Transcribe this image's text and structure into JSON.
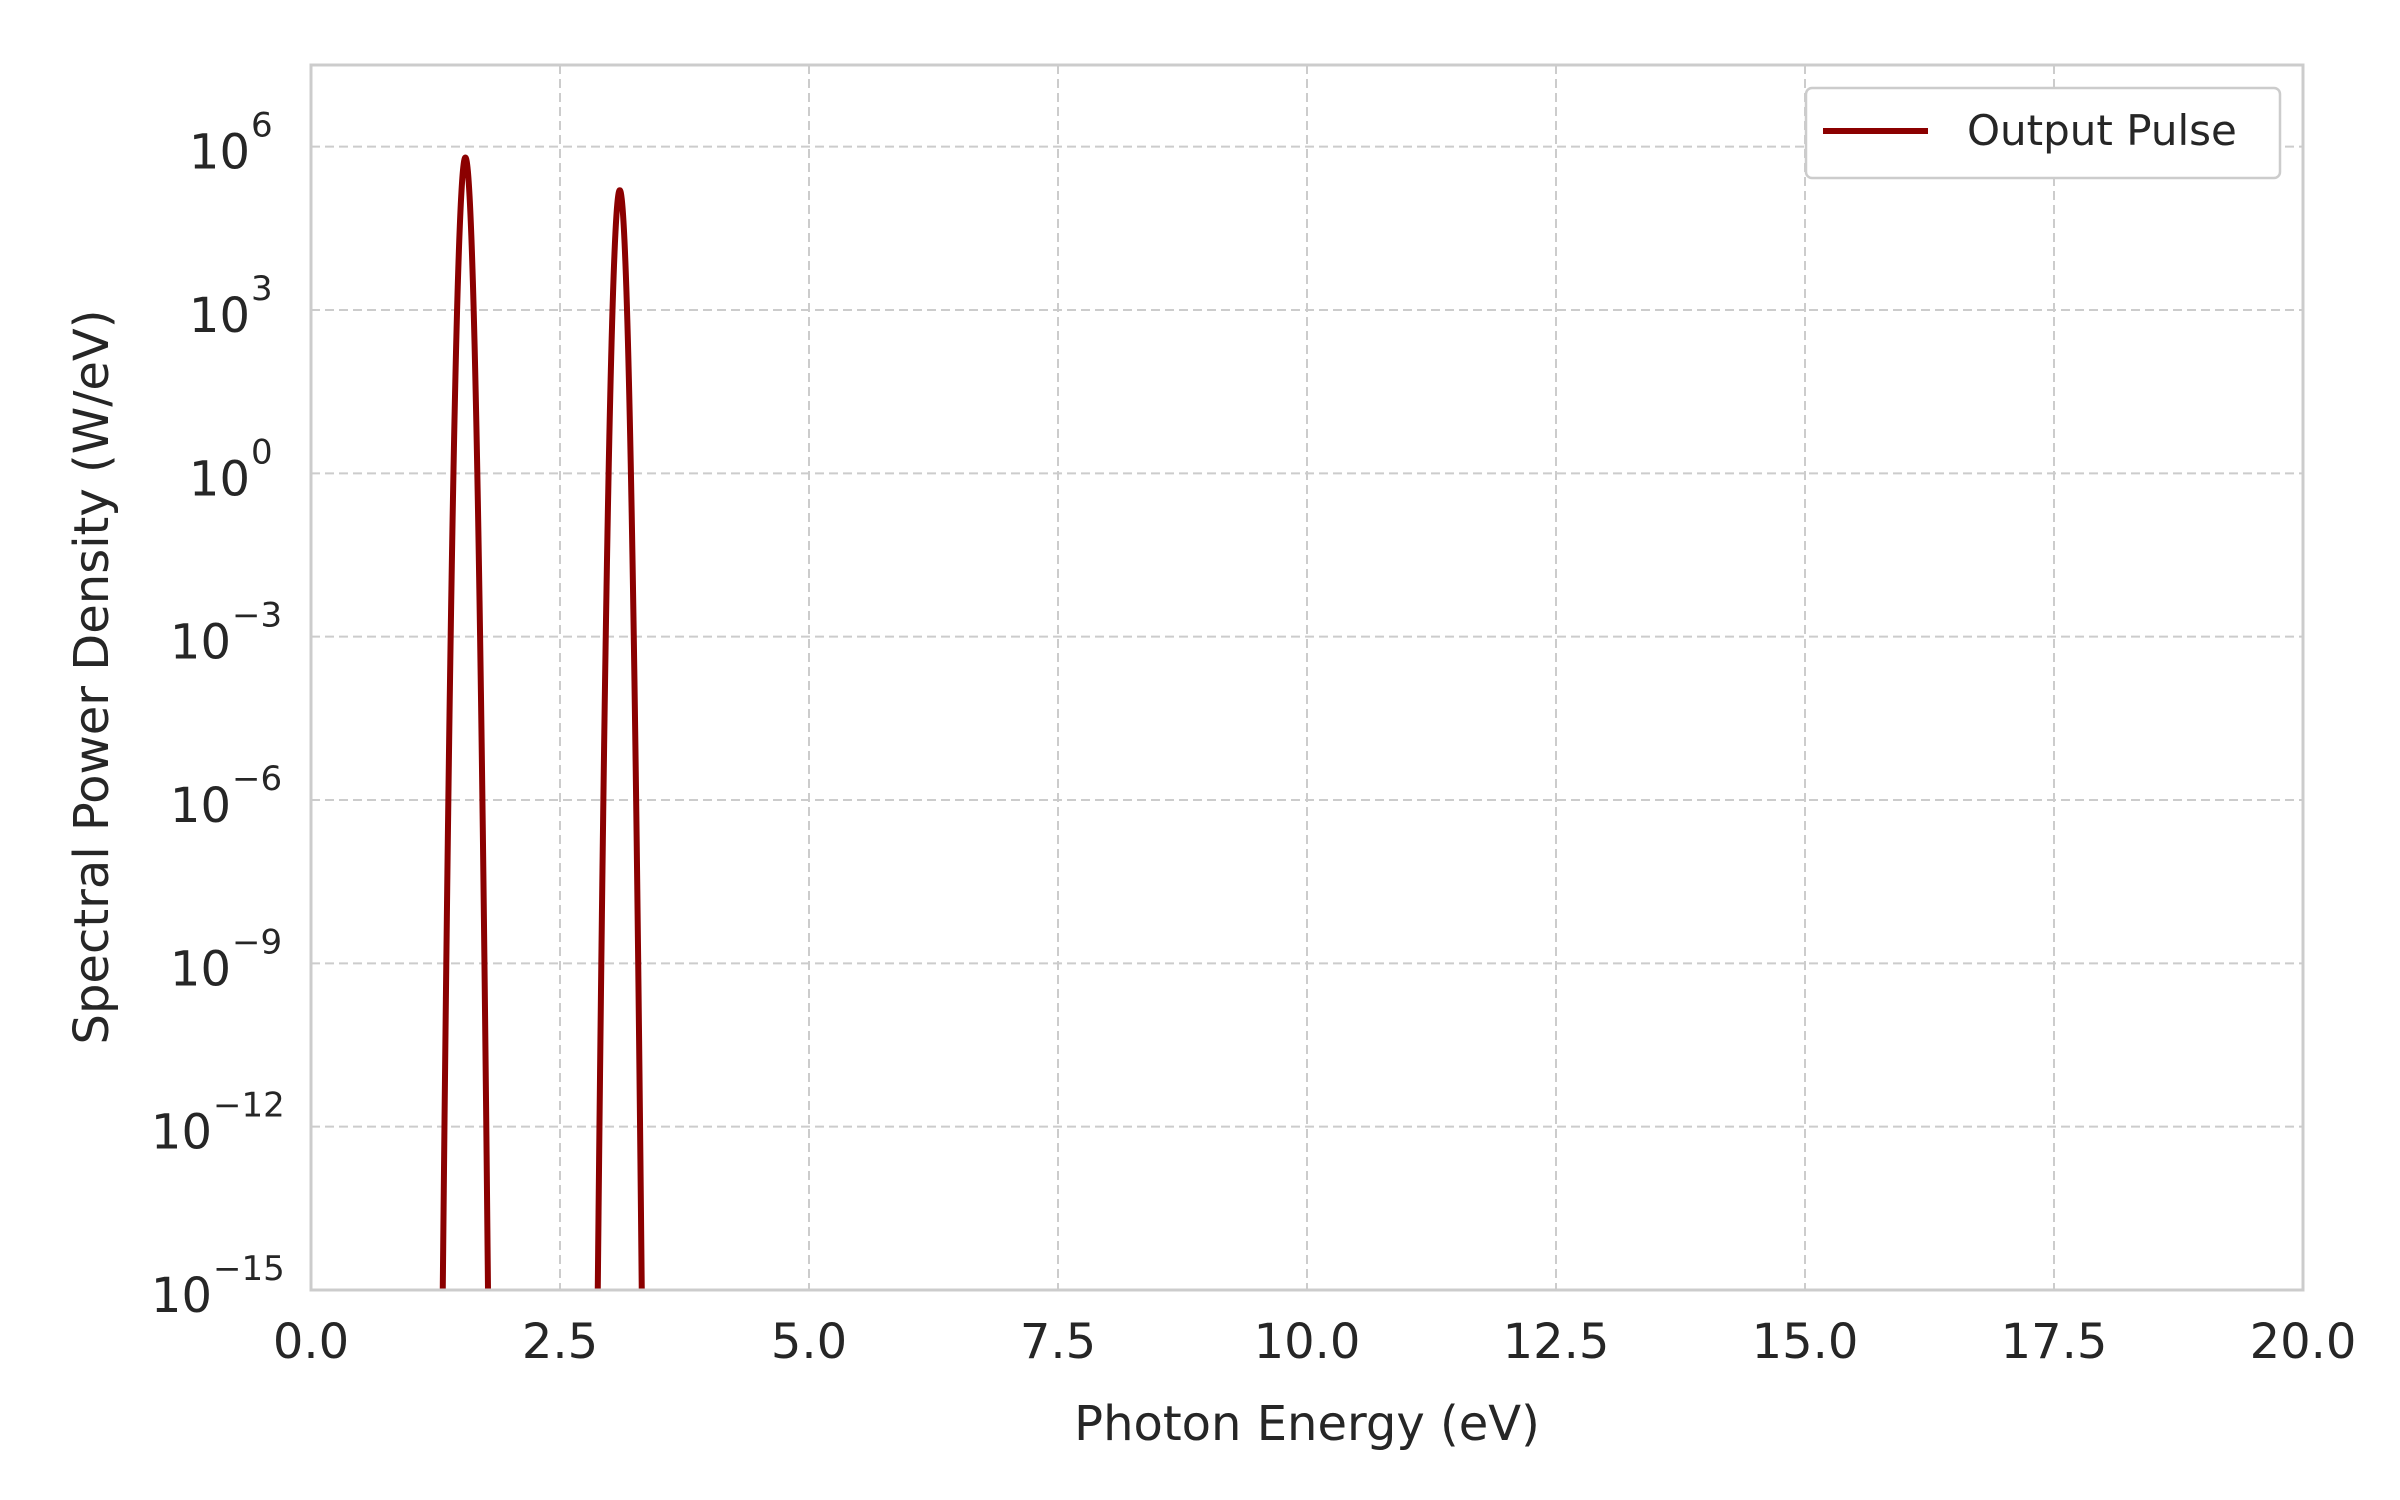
{
  "chart_data": {
    "type": "line",
    "xlabel": "Photon Energy (eV)",
    "ylabel": "Spectral Power Density (W/eV)",
    "xlim": [
      0,
      20
    ],
    "ylim_log10": [
      -15,
      7.5
    ],
    "y_scale": "log",
    "grid": true,
    "grid_style": "dashed",
    "legend_position": "top-right",
    "x_ticks": [
      "0.0",
      "2.5",
      "5.0",
      "7.5",
      "10.0",
      "12.5",
      "15.0",
      "17.5",
      "20.0"
    ],
    "x_tick_values": [
      0,
      2.5,
      5,
      7.5,
      10,
      12.5,
      15,
      17.5,
      20
    ],
    "y_tick_exponents": [
      "6",
      "3",
      "0",
      "−3",
      "−6",
      "−9",
      "−12",
      "−15"
    ],
    "y_tick_values_log10": [
      6,
      3,
      0,
      -3,
      -6,
      -9,
      -12,
      -15
    ],
    "y_tick_base": "10",
    "series": [
      {
        "name": "Output Pulse",
        "color": "#8b0000",
        "peaks": [
          {
            "center_eV": 1.55,
            "peak_log10": 5.8,
            "width_eV": 0.0232
          },
          {
            "center_eV": 3.1,
            "peak_log10": 5.2,
            "width_eV": 0.0229
          }
        ]
      }
    ]
  }
}
